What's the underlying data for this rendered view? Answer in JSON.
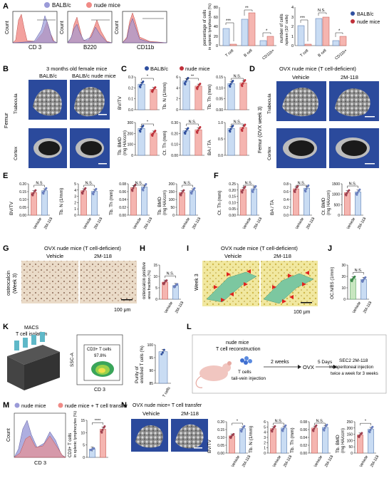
{
  "panel_labels": [
    "A",
    "B",
    "C",
    "D",
    "E",
    "F",
    "G",
    "H",
    "I",
    "J",
    "K",
    "L",
    "M",
    "N"
  ],
  "colors": {
    "balbc": "#9a9ad8",
    "nude": "#f08a86",
    "bar_blue": "#c9dcf3",
    "bar_red": "#f5b5b0",
    "vehicle_dot": "#a04050",
    "drug_dot": "#6a7fbf",
    "tissue_green": "#7cc7a0"
  },
  "A": {
    "legend": [
      "BALB/c",
      "nude mice"
    ],
    "flow_xlabels": [
      "CD 3",
      "B220",
      "CD11b"
    ],
    "flow_ylabel": "Count",
    "bar1": {
      "ylabel": "percentage of cells",
      "ylabel2": "in splenic lymphocytes (%)",
      "ticks": [
        "0",
        "20",
        "40",
        "60",
        "80"
      ],
      "cats": [
        "T cell",
        "B cell",
        "CD11b+"
      ],
      "sig": [
        "***",
        "**",
        "*"
      ]
    },
    "bar2": {
      "ylabel": "number of cells",
      "ylabel2": "/spleen (10⁷ cells)",
      "ticks": [
        "0",
        "1",
        "2",
        "3",
        "4"
      ],
      "cats": [
        "T cell",
        "B cell",
        "CD11b+"
      ],
      "sig": [
        "***",
        "N.S.",
        "*"
      ]
    },
    "legend2": [
      "BALB/c",
      "nude mice"
    ]
  },
  "B": {
    "title": "3 months old female mice",
    "cols": [
      "BALB/c",
      "BALB/c nude mice"
    ],
    "rows": [
      "Trabecula",
      "Cortex"
    ],
    "side": "Femur"
  },
  "C": {
    "legend": [
      "BALB/c",
      "nude mice"
    ],
    "plots": [
      {
        "ylabel": "BV/TV",
        "ticks": [
          "0.0",
          "0.1",
          "0.2",
          "0.3"
        ],
        "sig": "*"
      },
      {
        "ylabel": "Tb. N (1/mm)",
        "ticks": [
          "0",
          "2",
          "4",
          "6"
        ],
        "sig": "**"
      },
      {
        "ylabel": "Tb. Th (mm)",
        "ticks": [
          "0.00",
          "0.05",
          "0.10",
          "0.15"
        ],
        "sig": "N.S."
      },
      {
        "ylabel": "Tb. BMD",
        "ylabel2": "(mg HA/ccm)",
        "ticks": [
          "0",
          "100",
          "200",
          "300"
        ],
        "sig": "*"
      },
      {
        "ylabel": "Ct. Th (mm)",
        "ticks": [
          "0.00",
          "0.10",
          "0.20",
          "0.30"
        ],
        "sig": "N.S."
      },
      {
        "ylabel": "BA / TA",
        "ticks": [
          "0.0",
          "0.5",
          "1.0"
        ],
        "sig": "N.S."
      }
    ]
  },
  "D": {
    "title": "OVX nude mice (T cell-deficient)",
    "cols": [
      "Vehicle",
      "2M-118"
    ],
    "rows": [
      "Trabecula",
      "Cortex"
    ],
    "side": "Femur (OVX week 3)"
  },
  "E": {
    "plots": [
      {
        "ylabel": "BV/TV",
        "ticks": [
          "0.00",
          "0.05",
          "0.10",
          "0.15",
          "0.20"
        ],
        "sig": "N.S"
      },
      {
        "ylabel": "Tb. N (1/mm)",
        "ticks": [
          "0",
          "1",
          "2",
          "3",
          "4",
          "5"
        ],
        "sig": "N.S."
      },
      {
        "ylabel": "Tb. Th (mm)",
        "ticks": [
          "0.00",
          "0.02",
          "0.04",
          "0.06",
          "0.08"
        ],
        "sig": "N.S."
      },
      {
        "ylabel": "Tb. BMD",
        "ylabel2": "(mg HA/ccm)",
        "ticks": [
          "0",
          "50",
          "100",
          "150",
          "200"
        ],
        "sig": "N.S."
      }
    ],
    "xcats": [
      "Vehicle",
      "2M-118"
    ]
  },
  "F": {
    "plots": [
      {
        "ylabel": "Ct. Th (mm)",
        "ticks": [
          "0.00",
          "0.05",
          "0.10",
          "0.15",
          "0.20",
          "0.25"
        ],
        "sig": "N.S."
      },
      {
        "ylabel": "BA / TA",
        "ticks": [
          "0.0",
          "0.2",
          "0.4",
          "0.6",
          "0.8"
        ],
        "sig": "N.S."
      },
      {
        "ylabel": "Ct. BMD",
        "ylabel2": "(mg HA/ccm)",
        "ticks": [
          "0",
          "500",
          "1000",
          "1500"
        ],
        "sig": "N.S."
      }
    ],
    "xcats": [
      "Vehicle",
      "2M-118"
    ]
  },
  "G": {
    "title": "OVX nude mice (T cell-deficient)",
    "cols": [
      "Vehicle",
      "2M-118"
    ],
    "side": "osteocalcin",
    "side2": "(Week 3)",
    "scale": "100 μm"
  },
  "H": {
    "ylabel": "osteocalcin positive",
    "ylabel2": "area fraction (%)",
    "ticks": [
      "0",
      "5",
      "10",
      "15"
    ],
    "sig": "N.S.",
    "xcats": [
      "Vehicle",
      "2M-118"
    ]
  },
  "I": {
    "title": "OVX nude mice (T cell-deficient)",
    "cols": [
      "Vehicle",
      "2M-118"
    ],
    "side": "Week 3",
    "scale": "100 μm"
  },
  "J": {
    "ylabel": "OC.N/BS (1/mm)",
    "ticks": [
      "0",
      "10",
      "20",
      "30"
    ],
    "sig": "N.S.",
    "xcats": [
      "Vehicle",
      "2M-118"
    ]
  },
  "K": {
    "title": "MACS",
    "title2": "T cell isolation",
    "ssc": "SSC-A",
    "cd3": "CD 3",
    "gate": "CD3+ T cells",
    "gate_pct": "97.8%",
    "purity_ylabel": "Purity of",
    "purity_ylabel2": "enriched T cells (%)",
    "purity_ticks": [
      "85",
      "90",
      "95",
      "100"
    ],
    "purity_x": "T cells"
  },
  "L": {
    "box1": "nude mice",
    "box2": "T cell reconstruction",
    "cells": "T cells",
    "inject": "tail-vein injection",
    "weeks": "2 weeks",
    "ovx": "OVX",
    "days": "5 Days",
    "t1": "SEC2 2M-118",
    "t2": "Intraperitoneal injection",
    "t3": "twice a week for 3 weeks"
  },
  "M": {
    "legend": [
      "nude mice",
      "nude mice + T cell transfer"
    ],
    "flow_ylabel": "Count",
    "flow_xlabel": "CD 3",
    "ylabel": "CD3+ T cells",
    "ylabel2": "in splenic lymphocytes (%)",
    "ticks": [
      "0",
      "5",
      "10",
      "15"
    ],
    "sig": "****"
  },
  "N": {
    "title": "OVX nude mice+ T cell transfer",
    "cols": [
      "Vehicle",
      "2M-118"
    ],
    "plots": [
      {
        "ylabel": "BV/TV",
        "ticks": [
          "0.00",
          "0.05",
          "0.10",
          "0.15",
          "0.20"
        ],
        "sig": "*"
      },
      {
        "ylabel": "Tb. N (1/mm)",
        "ticks": [
          "0",
          "1",
          "2",
          "3",
          "4",
          "5",
          "6"
        ],
        "sig": "N.S."
      },
      {
        "ylabel": "Tb. Th (mm)",
        "ticks": [
          "0.00",
          "0.02",
          "0.04",
          "0.06",
          "0.08"
        ],
        "sig": "N.S."
      },
      {
        "ylabel": "Tb. BMD",
        "ylabel2": "(mg HA/ccm)",
        "ticks": [
          "0",
          "50",
          "100",
          "150",
          "200",
          "250"
        ],
        "sig": "*"
      }
    ],
    "xcats": [
      "Vehicle",
      "2M-118"
    ]
  }
}
